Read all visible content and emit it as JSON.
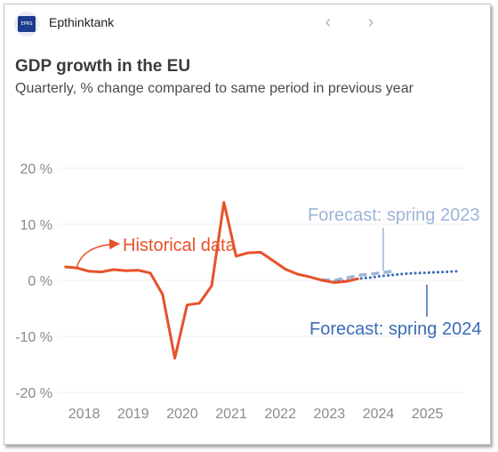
{
  "app": {
    "name": "Epthinktank",
    "logo_text": "EPRS"
  },
  "nav": {
    "prev_icon": "‹",
    "next_icon": "›"
  },
  "colors": {
    "historical": "#e8512a",
    "forecast_2023": "#9eb5d6",
    "forecast_2024": "#3a6cb5",
    "axis_text": "#8a8a8a",
    "grid": "#d6d6d6"
  },
  "chart_data": {
    "type": "line",
    "title": "GDP growth in the EU",
    "subtitle": "Quarterly, % change compared to same period in previous year",
    "y_ticks": [
      "20 %",
      "10 %",
      "0 %",
      "-10 %",
      "-20 %"
    ],
    "ylim": [
      -20,
      20
    ],
    "x_ticks": [
      "2018",
      "2019",
      "2020",
      "2021",
      "2022",
      "2023",
      "2024",
      "2025"
    ],
    "xlim": [
      2017.5,
      2025.75
    ],
    "grid": "horizontal dotted",
    "series": [
      {
        "name": "Historical data",
        "style": "solid",
        "x": [
          2017.6,
          2017.85,
          2018.1,
          2018.35,
          2018.6,
          2018.85,
          2019.1,
          2019.35,
          2019.6,
          2019.85,
          2020.1,
          2020.35,
          2020.6,
          2020.85,
          2021.1,
          2021.35,
          2021.6,
          2021.85,
          2022.1,
          2022.35,
          2022.6,
          2022.85,
          2023.1,
          2023.35,
          2023.6
        ],
        "y": [
          2.4,
          2.2,
          1.6,
          1.5,
          1.9,
          1.7,
          1.8,
          1.3,
          -2.5,
          -13.9,
          -4.4,
          -4.1,
          -1.0,
          13.9,
          4.3,
          4.9,
          5.0,
          3.5,
          2.0,
          1.1,
          0.6,
          0.0,
          -0.4,
          -0.2,
          0.3
        ]
      },
      {
        "name": "Forecast: spring 2023",
        "style": "dashed",
        "x": [
          2022.85,
          2023.1,
          2023.35,
          2023.6,
          2023.85,
          2024.1,
          2024.3
        ],
        "y": [
          0.1,
          0.0,
          0.4,
          0.9,
          1.1,
          1.4,
          1.6
        ]
      },
      {
        "name": "Forecast: spring 2024",
        "style": "dotted",
        "x": [
          2023.1,
          2023.35,
          2023.6,
          2023.85,
          2024.1,
          2024.35,
          2024.6,
          2024.85,
          2025.1,
          2025.35,
          2025.6
        ],
        "y": [
          -0.3,
          -0.1,
          0.3,
          0.5,
          0.8,
          1.0,
          1.2,
          1.3,
          1.4,
          1.5,
          1.6
        ]
      }
    ],
    "annotations": [
      {
        "text": "Historical data",
        "series": "Historical data"
      },
      {
        "text": "Forecast: spring 2023",
        "series": "Forecast: spring 2023"
      },
      {
        "text": "Forecast: spring 2024",
        "series": "Forecast: spring 2024"
      }
    ]
  }
}
